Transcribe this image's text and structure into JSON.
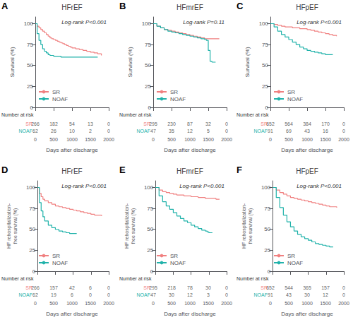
{
  "chart_data": [
    {
      "type": "step",
      "panel_label": "A",
      "title": "HFrEF",
      "annotation": "Log-rank P<0.001",
      "ylabel": "Survival (%)",
      "xlabel": "Days after discharge",
      "xlim": [
        0,
        2000
      ],
      "ylim": [
        0,
        108
      ],
      "xticks": [
        0,
        500,
        1000,
        1500,
        2000
      ],
      "yticks": [
        0,
        25,
        50,
        75,
        100
      ],
      "grid": false,
      "legend": "lower left",
      "tick_labels": "y",
      "series": [
        {
          "name": "SR",
          "color": "#F08080",
          "x": [
            0,
            50,
            100,
            150,
            200,
            250,
            300,
            350,
            400,
            450,
            500,
            550,
            600,
            650,
            700,
            750,
            800,
            850,
            900,
            950,
            1000,
            1100,
            1200,
            1300,
            1400,
            1500,
            1600,
            1700,
            1800
          ],
          "values": [
            100,
            97,
            95,
            93,
            91,
            89,
            87,
            85,
            83,
            82,
            81,
            80,
            79,
            78,
            77,
            76,
            75,
            74,
            73,
            72,
            71,
            70,
            69,
            68,
            67,
            66,
            65,
            64,
            62
          ]
        },
        {
          "name": "NOAF",
          "color": "#20B2AA",
          "x": [
            0,
            50,
            100,
            150,
            200,
            250,
            300,
            350,
            400,
            500,
            600,
            700,
            800,
            1000,
            1200,
            1500,
            1700
          ],
          "values": [
            100,
            88,
            80,
            75,
            70,
            67,
            65,
            63,
            62,
            61,
            61,
            60,
            60,
            60,
            60,
            60,
            60
          ]
        }
      ],
      "at_risk": {
        "title": "Number at risk",
        "x": [
          0,
          500,
          1000,
          1500,
          2000
        ],
        "series": [
          {
            "name": "SR",
            "values": [
              266,
              182,
              54,
              13,
              0
            ]
          },
          {
            "name": "NOAF",
            "values": [
              62,
              26,
              10,
              2,
              0
            ]
          }
        ]
      }
    },
    {
      "type": "step",
      "panel_label": "B",
      "title": "HFmrEF",
      "annotation": "Log-rank P=0.11",
      "ylabel": "Survival (%)",
      "xlabel": "Days after discharge",
      "xlim": [
        0,
        2000
      ],
      "ylim": [
        0,
        108
      ],
      "xticks": [
        0,
        500,
        1000,
        1500,
        2000
      ],
      "yticks": [
        0,
        25,
        50,
        75,
        100
      ],
      "grid": false,
      "legend": "lower left",
      "tick_labels": "y",
      "series": [
        {
          "name": "SR",
          "color": "#F08080",
          "x": [
            0,
            100,
            200,
            300,
            400,
            500,
            600,
            700,
            800,
            900,
            1000,
            1100,
            1200,
            1300,
            1400,
            1500,
            1600,
            1700,
            1800
          ],
          "values": [
            100,
            97,
            95,
            93,
            92,
            91,
            90,
            89,
            88,
            87,
            86,
            85,
            84,
            83,
            82,
            82,
            82,
            82,
            82
          ]
        },
        {
          "name": "NOAF",
          "color": "#20B2AA",
          "x": [
            0,
            100,
            200,
            300,
            400,
            500,
            600,
            700,
            800,
            900,
            1000,
            1100,
            1200,
            1300,
            1400,
            1450,
            1500,
            1550,
            1600,
            1700
          ],
          "values": [
            100,
            97,
            95,
            93,
            91,
            90,
            89,
            88,
            87,
            86,
            85,
            84,
            83,
            82,
            81,
            80,
            68,
            55,
            54,
            54
          ]
        }
      ],
      "at_risk": {
        "title": "Number at risk",
        "x": [
          0,
          500,
          1000,
          1500,
          2000
        ],
        "series": [
          {
            "name": "SR",
            "values": [
              295,
              230,
              87,
              32,
              0
            ]
          },
          {
            "name": "NOAF",
            "values": [
              47,
              35,
              12,
              5,
              0
            ]
          }
        ]
      }
    },
    {
      "type": "step",
      "panel_label": "C",
      "title": "HFpEF",
      "annotation": "Log-rank P<0.001",
      "ylabel": "Survival (%)",
      "xlabel": "Days after discharge",
      "xlim": [
        0,
        2000
      ],
      "ylim": [
        0,
        108
      ],
      "xticks": [
        0,
        500,
        1000,
        1500,
        2000
      ],
      "yticks": [
        0,
        25,
        50,
        75,
        100
      ],
      "grid": false,
      "legend": "lower left",
      "tick_labels": "y",
      "series": [
        {
          "name": "SR",
          "color": "#F08080",
          "x": [
            0,
            100,
            200,
            300,
            400,
            500,
            600,
            700,
            800,
            900,
            1000,
            1100,
            1200,
            1300,
            1400,
            1500,
            1600,
            1700,
            1800
          ],
          "values": [
            100,
            99,
            98,
            97,
            96,
            96,
            95,
            95,
            94,
            94,
            93,
            92,
            91,
            90,
            89,
            88,
            87,
            86,
            85
          ]
        },
        {
          "name": "NOAF",
          "color": "#20B2AA",
          "x": [
            0,
            100,
            200,
            300,
            400,
            500,
            600,
            700,
            800,
            900,
            1000,
            1100,
            1200,
            1300,
            1400,
            1500,
            1600,
            1700
          ],
          "values": [
            100,
            96,
            91,
            87,
            84,
            81,
            78,
            75,
            72,
            70,
            68,
            67,
            66,
            65,
            64,
            63,
            63,
            63
          ]
        }
      ],
      "at_risk": {
        "title": "Number at risk",
        "x": [
          0,
          500,
          1000,
          1500,
          2000
        ],
        "series": [
          {
            "name": "SR",
            "values": [
              652,
              564,
              384,
              170,
              0
            ]
          },
          {
            "name": "NOAF",
            "values": [
              91,
              69,
              43,
              16,
              0
            ]
          }
        ]
      }
    },
    {
      "type": "step",
      "panel_label": "D",
      "title": "HFrEF",
      "annotation": "Log-rank P<0.001",
      "ylabel": "HF rehospitalization-\nfree survival (%)",
      "xlabel": "Days after discharge",
      "xlim": [
        0,
        2000
      ],
      "ylim": [
        0,
        108
      ],
      "xticks": [
        0,
        500,
        1000,
        1500,
        2000
      ],
      "yticks": [
        0,
        25,
        50,
        75,
        100
      ],
      "grid": false,
      "legend": "lower left",
      "tick_labels": "y",
      "series": [
        {
          "name": "SR",
          "color": "#F08080",
          "x": [
            0,
            50,
            100,
            150,
            200,
            300,
            400,
            500,
            600,
            700,
            800,
            900,
            1000,
            1100,
            1200,
            1300,
            1400,
            1500,
            1600,
            1700,
            1800
          ],
          "values": [
            100,
            93,
            89,
            86,
            84,
            82,
            80,
            78,
            77,
            76,
            75,
            74,
            73,
            72,
            71,
            70,
            69,
            68,
            67,
            67,
            66
          ]
        },
        {
          "name": "NOAF",
          "color": "#20B2AA",
          "x": [
            0,
            50,
            100,
            150,
            200,
            300,
            400,
            500,
            600,
            700,
            800,
            900,
            1000,
            1100
          ],
          "values": [
            100,
            82,
            72,
            65,
            60,
            55,
            52,
            50,
            48,
            47,
            46,
            45,
            45,
            45
          ]
        }
      ],
      "at_risk": {
        "title": "Number at risk",
        "x": [
          0,
          500,
          1000,
          1500,
          2000
        ],
        "series": [
          {
            "name": "SR",
            "values": [
              266,
              157,
              42,
              6,
              0
            ]
          },
          {
            "name": "NOAF",
            "values": [
              62,
              19,
              6,
              0,
              0
            ]
          }
        ]
      }
    },
    {
      "type": "step",
      "panel_label": "E",
      "title": "HFmrEF",
      "annotation": "Log-rank P<0.001",
      "ylabel": "HF rehospitalization-\nfree survival (%)",
      "xlabel": "Days after discharge",
      "xlim": [
        0,
        2000
      ],
      "ylim": [
        0,
        108
      ],
      "xticks": [
        0,
        500,
        1000,
        1500,
        2000
      ],
      "yticks": [
        0,
        25,
        50,
        75,
        100
      ],
      "grid": false,
      "legend": "lower left",
      "tick_labels": "y",
      "series": [
        {
          "name": "SR",
          "color": "#F08080",
          "x": [
            0,
            100,
            200,
            300,
            400,
            500,
            600,
            700,
            800,
            900,
            1000,
            1100,
            1200,
            1300,
            1400,
            1500,
            1600,
            1700,
            1800
          ],
          "values": [
            100,
            97,
            95,
            94,
            93,
            92,
            91,
            91,
            90,
            90,
            89,
            89,
            88,
            88,
            87,
            87,
            87,
            86,
            86
          ]
        },
        {
          "name": "NOAF",
          "color": "#20B2AA",
          "x": [
            0,
            100,
            200,
            300,
            400,
            500,
            600,
            700,
            800,
            900,
            1000,
            1100,
            1200,
            1300,
            1400,
            1450,
            1500,
            1600
          ],
          "values": [
            100,
            90,
            83,
            78,
            74,
            70,
            66,
            63,
            60,
            58,
            55,
            53,
            51,
            49,
            48,
            47,
            46,
            46
          ]
        }
      ],
      "at_risk": {
        "title": "Number at risk",
        "x": [
          0,
          500,
          1000,
          1500,
          2000
        ],
        "series": [
          {
            "name": "SR",
            "values": [
              295,
              218,
              78,
              30,
              0
            ]
          },
          {
            "name": "NOAF",
            "values": [
              47,
              30,
              12,
              3,
              0
            ]
          }
        ]
      }
    },
    {
      "type": "step",
      "panel_label": "F",
      "title": "HFpEF",
      "annotation": "Log-rank P<0.001",
      "ylabel": "HF rehospitalization-\nfree survival (%)",
      "xlabel": "Days after discharge",
      "xlim": [
        0,
        2000
      ],
      "ylim": [
        0,
        108
      ],
      "xticks": [
        0,
        500,
        1000,
        1500,
        2000
      ],
      "yticks": [
        0,
        25,
        50,
        75,
        100
      ],
      "grid": false,
      "legend": "lower left",
      "tick_labels": "y",
      "series": [
        {
          "name": "SR",
          "color": "#F08080",
          "x": [
            0,
            100,
            200,
            300,
            400,
            500,
            600,
            700,
            800,
            900,
            1000,
            1100,
            1200,
            1300,
            1400,
            1500,
            1600,
            1700,
            1800
          ],
          "values": [
            100,
            97,
            94,
            92,
            90,
            88,
            87,
            86,
            85,
            84,
            83,
            82,
            81,
            80,
            79,
            78,
            77,
            77,
            76
          ]
        },
        {
          "name": "NOAF",
          "color": "#20B2AA",
          "x": [
            0,
            100,
            200,
            300,
            400,
            500,
            600,
            700,
            800,
            900,
            1000,
            1100,
            1200,
            1300,
            1400,
            1500,
            1600,
            1700
          ],
          "values": [
            100,
            88,
            76,
            67,
            59,
            53,
            48,
            44,
            41,
            39,
            37,
            35,
            33,
            32,
            31,
            30,
            29,
            29
          ]
        }
      ],
      "at_risk": {
        "title": "Number at risk",
        "x": [
          0,
          500,
          1000,
          1500,
          2000
        ],
        "series": [
          {
            "name": "SR",
            "values": [
              652,
              544,
              365,
              157,
              0
            ]
          },
          {
            "name": "NOAF",
            "values": [
              91,
              43,
              30,
              12,
              0
            ]
          }
        ]
      }
    }
  ]
}
